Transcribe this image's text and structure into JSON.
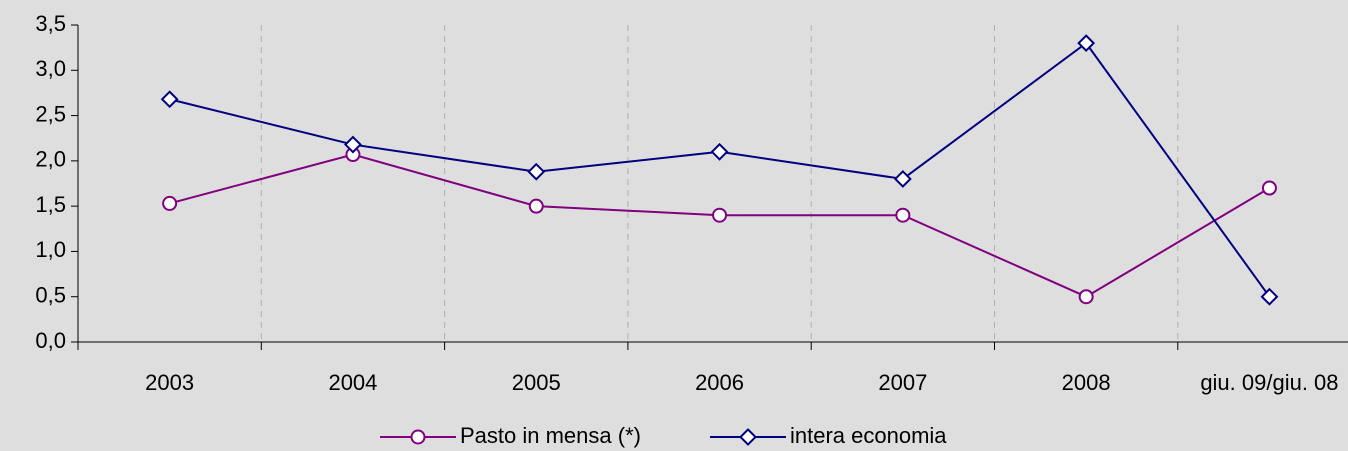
{
  "chart_data": {
    "type": "line",
    "categories": [
      "2003",
      "2004",
      "2005",
      "2006",
      "2007",
      "2008",
      "giu. 09/giu. 08"
    ],
    "series": [
      {
        "name": "Pasto in mensa (*)",
        "color": "#800080",
        "marker": "circle",
        "values": [
          1.53,
          2.07,
          1.5,
          1.4,
          1.4,
          0.5,
          1.7
        ]
      },
      {
        "name": "intera economia",
        "color": "#000080",
        "marker": "diamond",
        "values": [
          2.68,
          2.18,
          1.88,
          2.1,
          1.8,
          3.3,
          0.5
        ]
      }
    ],
    "ylim": [
      0,
      3.5
    ],
    "yticks": [
      {
        "value": 0,
        "label": "0,0"
      },
      {
        "value": 0.5,
        "label": "0,5"
      },
      {
        "value": 1,
        "label": "1,0"
      },
      {
        "value": 1.5,
        "label": "1,5"
      },
      {
        "value": 2,
        "label": "2,0"
      },
      {
        "value": 2.5,
        "label": "2,5"
      },
      {
        "value": 3,
        "label": "3,0"
      },
      {
        "value": 3.5,
        "label": "3,5"
      }
    ],
    "grid": true,
    "legend": "bottom"
  }
}
